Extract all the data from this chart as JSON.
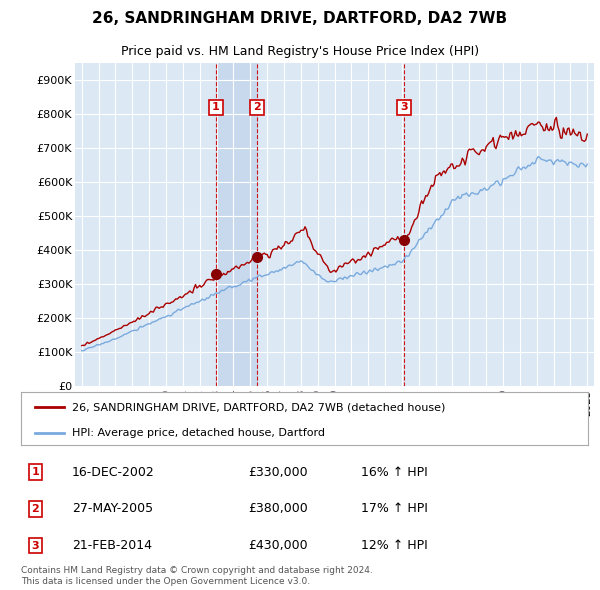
{
  "title": "26, SANDRINGHAM DRIVE, DARTFORD, DA2 7WB",
  "subtitle": "Price paid vs. HM Land Registry's House Price Index (HPI)",
  "ylim": [
    0,
    950000
  ],
  "yticks": [
    0,
    100000,
    200000,
    300000,
    400000,
    500000,
    600000,
    700000,
    800000,
    900000
  ],
  "ytick_labels": [
    "£0",
    "£100K",
    "£200K",
    "£300K",
    "£400K",
    "£500K",
    "£600K",
    "£700K",
    "£800K",
    "£900K"
  ],
  "background_color": "#ffffff",
  "plot_bg_color": "#dce9f5",
  "shade_color": "#c8d9ee",
  "grid_color": "#ffffff",
  "red_line_color": "#aa0000",
  "blue_line_color": "#7aaadd",
  "sale_marker_color": "#880000",
  "annotation_box_color": "#cc0000",
  "dashed_line_color": "#cc0000",
  "solid_line_color": "#cc0000",
  "sales": [
    {
      "year": 2002.96,
      "price": 330000,
      "label": "1"
    },
    {
      "year": 2005.4,
      "price": 380000,
      "label": "2"
    },
    {
      "year": 2014.12,
      "price": 430000,
      "label": "3"
    }
  ],
  "legend_entries": [
    {
      "label": "26, SANDRINGHAM DRIVE, DARTFORD, DA2 7WB (detached house)",
      "color": "#aa0000"
    },
    {
      "label": "HPI: Average price, detached house, Dartford",
      "color": "#7aaadd"
    }
  ],
  "footer_lines": [
    "Contains HM Land Registry data © Crown copyright and database right 2024.",
    "This data is licensed under the Open Government Licence v3.0."
  ],
  "table_data": [
    [
      "1",
      "16-DEC-2002",
      "£330,000",
      "16% ↑ HPI"
    ],
    [
      "2",
      "27-MAY-2005",
      "£380,000",
      "17% ↑ HPI"
    ],
    [
      "3",
      "21-FEB-2014",
      "£430,000",
      "12% ↑ HPI"
    ]
  ]
}
